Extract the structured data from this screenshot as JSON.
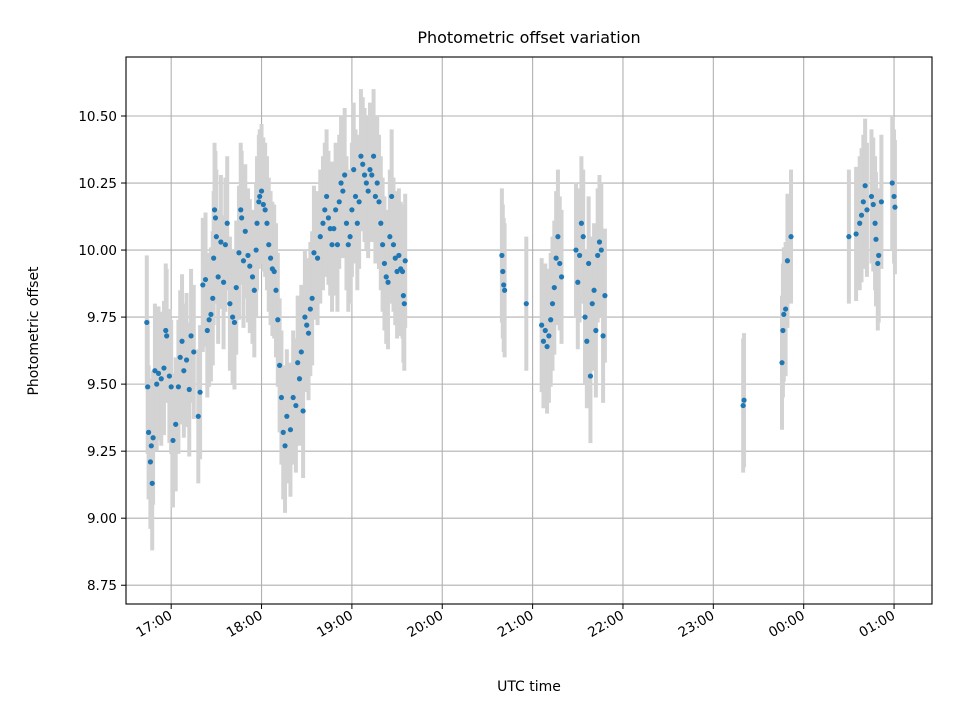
{
  "chart_data": {
    "type": "scatter",
    "title": "Photometric offset variation",
    "xlabel": "UTC time",
    "ylabel": "Photometric offset",
    "x_units": "UTC time of day (hour of day; values >= 24 fall after midnight)",
    "xlim": [
      16.5,
      25.42
    ],
    "ylim": [
      8.68,
      10.72
    ],
    "grid": true,
    "colors": {
      "points": "#1f77b4",
      "errorbars": "#d3d3d3",
      "grid": "#b0b0b0"
    },
    "x_ticks": [
      {
        "value": 17,
        "label": "17:00"
      },
      {
        "value": 18,
        "label": "18:00"
      },
      {
        "value": 19,
        "label": "19:00"
      },
      {
        "value": 20,
        "label": "20:00"
      },
      {
        "value": 21,
        "label": "21:00"
      },
      {
        "value": 22,
        "label": "22:00"
      },
      {
        "value": 23,
        "label": "23:00"
      },
      {
        "value": 24,
        "label": "00:00"
      },
      {
        "value": 25,
        "label": "01:00"
      }
    ],
    "y_ticks": [
      {
        "value": 8.75,
        "label": "8.75"
      },
      {
        "value": 9.0,
        "label": "9.00"
      },
      {
        "value": 9.25,
        "label": "9.25"
      },
      {
        "value": 9.5,
        "label": "9.50"
      },
      {
        "value": 9.75,
        "label": "9.75"
      },
      {
        "value": 10.0,
        "label": "10.00"
      },
      {
        "value": 10.25,
        "label": "10.25"
      },
      {
        "value": 10.5,
        "label": "10.50"
      }
    ],
    "series": [
      {
        "error_half_width": 0.25,
        "points": [
          [
            16.73,
            9.73
          ],
          [
            16.74,
            9.49
          ],
          [
            16.75,
            9.32
          ],
          [
            16.77,
            9.21
          ],
          [
            16.78,
            9.27
          ],
          [
            16.79,
            9.13
          ],
          [
            16.8,
            9.3
          ],
          [
            16.82,
            9.55
          ],
          [
            16.84,
            9.5
          ],
          [
            16.86,
            9.54
          ],
          [
            16.89,
            9.52
          ],
          [
            16.92,
            9.56
          ],
          [
            16.94,
            9.7
          ],
          [
            16.95,
            9.68
          ],
          [
            16.98,
            9.53
          ],
          [
            17.0,
            9.49
          ],
          [
            17.02,
            9.29
          ],
          [
            17.05,
            9.35
          ],
          [
            17.08,
            9.49
          ],
          [
            17.1,
            9.6
          ],
          [
            17.12,
            9.66
          ],
          [
            17.14,
            9.55
          ],
          [
            17.17,
            9.59
          ],
          [
            17.2,
            9.48
          ],
          [
            17.22,
            9.68
          ],
          [
            17.25,
            9.62
          ],
          [
            17.3,
            9.38
          ],
          [
            17.32,
            9.47
          ],
          [
            17.35,
            9.87
          ],
          [
            17.38,
            9.89
          ],
          [
            17.4,
            9.7
          ],
          [
            17.42,
            9.74
          ],
          [
            17.44,
            9.76
          ],
          [
            17.46,
            9.82
          ],
          [
            17.47,
            9.97
          ],
          [
            17.48,
            10.15
          ],
          [
            17.49,
            10.12
          ],
          [
            17.5,
            10.05
          ],
          [
            17.52,
            9.9
          ],
          [
            17.55,
            10.03
          ],
          [
            17.58,
            9.88
          ],
          [
            17.6,
            10.02
          ],
          [
            17.62,
            10.1
          ],
          [
            17.65,
            9.8
          ],
          [
            17.68,
            9.75
          ],
          [
            17.7,
            9.73
          ],
          [
            17.72,
            9.86
          ],
          [
            17.75,
            9.99
          ],
          [
            17.77,
            10.15
          ],
          [
            17.78,
            10.12
          ],
          [
            17.8,
            9.96
          ],
          [
            17.82,
            10.07
          ],
          [
            17.85,
            9.98
          ],
          [
            17.87,
            9.94
          ],
          [
            17.9,
            9.9
          ],
          [
            17.92,
            9.85
          ],
          [
            17.94,
            10.0
          ],
          [
            17.95,
            10.1
          ],
          [
            17.97,
            10.18
          ],
          [
            17.98,
            10.2
          ],
          [
            18.0,
            10.22
          ],
          [
            18.02,
            10.17
          ],
          [
            18.04,
            10.15
          ],
          [
            18.06,
            10.1
          ],
          [
            18.08,
            10.02
          ],
          [
            18.1,
            9.97
          ],
          [
            18.12,
            9.93
          ],
          [
            18.14,
            9.92
          ],
          [
            18.16,
            9.85
          ],
          [
            18.18,
            9.74
          ],
          [
            18.2,
            9.57
          ],
          [
            18.22,
            9.45
          ],
          [
            18.24,
            9.32
          ],
          [
            18.26,
            9.27
          ],
          [
            18.28,
            9.38
          ],
          [
            18.32,
            9.33
          ],
          [
            18.35,
            9.45
          ],
          [
            18.38,
            9.42
          ],
          [
            18.4,
            9.58
          ],
          [
            18.42,
            9.52
          ],
          [
            18.44,
            9.62
          ],
          [
            18.46,
            9.4
          ],
          [
            18.48,
            9.75
          ],
          [
            18.5,
            9.72
          ],
          [
            18.52,
            9.69
          ],
          [
            18.54,
            9.78
          ],
          [
            18.56,
            9.82
          ],
          [
            18.58,
            9.99
          ],
          [
            18.62,
            9.97
          ],
          [
            18.65,
            10.05
          ],
          [
            18.68,
            10.1
          ],
          [
            18.7,
            10.15
          ],
          [
            18.72,
            10.2
          ],
          [
            18.74,
            10.12
          ],
          [
            18.76,
            10.08
          ],
          [
            18.78,
            10.02
          ],
          [
            18.8,
            10.08
          ],
          [
            18.82,
            10.15
          ],
          [
            18.84,
            10.02
          ],
          [
            18.86,
            10.18
          ],
          [
            18.88,
            10.25
          ],
          [
            18.9,
            10.22
          ],
          [
            18.92,
            10.28
          ],
          [
            18.94,
            10.1
          ],
          [
            18.96,
            10.02
          ],
          [
            18.98,
            10.05
          ],
          [
            19.0,
            10.15
          ],
          [
            19.02,
            10.3
          ],
          [
            19.04,
            10.2
          ],
          [
            19.06,
            10.1
          ],
          [
            19.08,
            10.18
          ],
          [
            19.1,
            10.35
          ],
          [
            19.12,
            10.32
          ],
          [
            19.14,
            10.28
          ],
          [
            19.16,
            10.25
          ],
          [
            19.18,
            10.22
          ],
          [
            19.2,
            10.3
          ],
          [
            19.22,
            10.28
          ],
          [
            19.24,
            10.35
          ],
          [
            19.26,
            10.2
          ],
          [
            19.28,
            10.25
          ],
          [
            19.3,
            10.18
          ],
          [
            19.32,
            10.1
          ],
          [
            19.34,
            10.02
          ],
          [
            19.36,
            9.95
          ],
          [
            19.38,
            9.9
          ],
          [
            19.4,
            9.88
          ],
          [
            19.42,
            10.05
          ],
          [
            19.44,
            10.2
          ],
          [
            19.46,
            10.02
          ],
          [
            19.48,
            9.97
          ],
          [
            19.5,
            9.92
          ],
          [
            19.52,
            9.98
          ],
          [
            19.54,
            9.93
          ],
          [
            19.56,
            9.92
          ],
          [
            19.57,
            9.83
          ],
          [
            19.58,
            9.8
          ],
          [
            19.59,
            9.96
          ],
          [
            20.66,
            9.98
          ],
          [
            20.67,
            9.92
          ],
          [
            20.68,
            9.87
          ],
          [
            20.69,
            9.85
          ],
          [
            20.93,
            9.8
          ],
          [
            21.1,
            9.72
          ],
          [
            21.12,
            9.66
          ],
          [
            21.14,
            9.7
          ],
          [
            21.16,
            9.64
          ],
          [
            21.18,
            9.68
          ],
          [
            21.2,
            9.74
          ],
          [
            21.22,
            9.8
          ],
          [
            21.24,
            9.86
          ],
          [
            21.26,
            9.97
          ],
          [
            21.28,
            10.05
          ],
          [
            21.3,
            9.95
          ],
          [
            21.32,
            9.9
          ],
          [
            21.48,
            10.0
          ],
          [
            21.5,
            9.88
          ],
          [
            21.52,
            9.98
          ],
          [
            21.54,
            10.1
          ],
          [
            21.56,
            10.05
          ],
          [
            21.58,
            9.75
          ],
          [
            21.6,
            9.66
          ],
          [
            21.62,
            9.95
          ],
          [
            21.64,
            9.53
          ],
          [
            21.66,
            9.8
          ],
          [
            21.68,
            9.85
          ],
          [
            21.7,
            9.7
          ],
          [
            21.72,
            9.98
          ],
          [
            21.74,
            10.03
          ],
          [
            21.76,
            10.0
          ],
          [
            21.78,
            9.68
          ],
          [
            21.8,
            9.83
          ],
          [
            23.33,
            9.42
          ],
          [
            23.34,
            9.44
          ],
          [
            23.76,
            9.58
          ],
          [
            23.77,
            9.7
          ],
          [
            23.78,
            9.76
          ],
          [
            23.8,
            9.78
          ],
          [
            23.82,
            9.96
          ],
          [
            23.86,
            10.05
          ],
          [
            24.5,
            10.05
          ],
          [
            24.58,
            10.06
          ],
          [
            24.62,
            10.1
          ],
          [
            24.64,
            10.13
          ],
          [
            24.66,
            10.18
          ],
          [
            24.68,
            10.24
          ],
          [
            24.7,
            10.15
          ],
          [
            24.75,
            10.2
          ],
          [
            24.77,
            10.17
          ],
          [
            24.79,
            10.1
          ],
          [
            24.8,
            10.04
          ],
          [
            24.82,
            9.95
          ],
          [
            24.83,
            9.98
          ],
          [
            24.86,
            10.18
          ],
          [
            24.98,
            10.25
          ],
          [
            25.0,
            10.2
          ],
          [
            25.01,
            10.16
          ]
        ]
      }
    ]
  }
}
